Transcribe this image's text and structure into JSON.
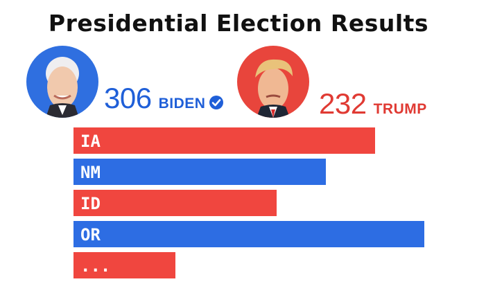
{
  "title": "Presidential Election Results",
  "candidates": {
    "biden": {
      "votes": "306",
      "name": "BIDEN",
      "color": "#1f5fd8",
      "verified_icon": "check-circle-icon"
    },
    "trump": {
      "votes": "232",
      "name": "TRUMP",
      "color": "#e03a33"
    }
  },
  "chart_data": {
    "type": "bar",
    "orientation": "horizontal",
    "categories": [
      "IA",
      "NM",
      "ID",
      "OR",
      "..."
    ],
    "values": [
      0.86,
      0.72,
      0.58,
      1.0,
      0.29
    ],
    "bar_colors": [
      "#f0463f",
      "#2d6de3",
      "#f0463f",
      "#2d6de3",
      "#f0463f"
    ],
    "title": "Presidential Election Results",
    "xlabel": "",
    "ylabel": "",
    "grid": false
  }
}
